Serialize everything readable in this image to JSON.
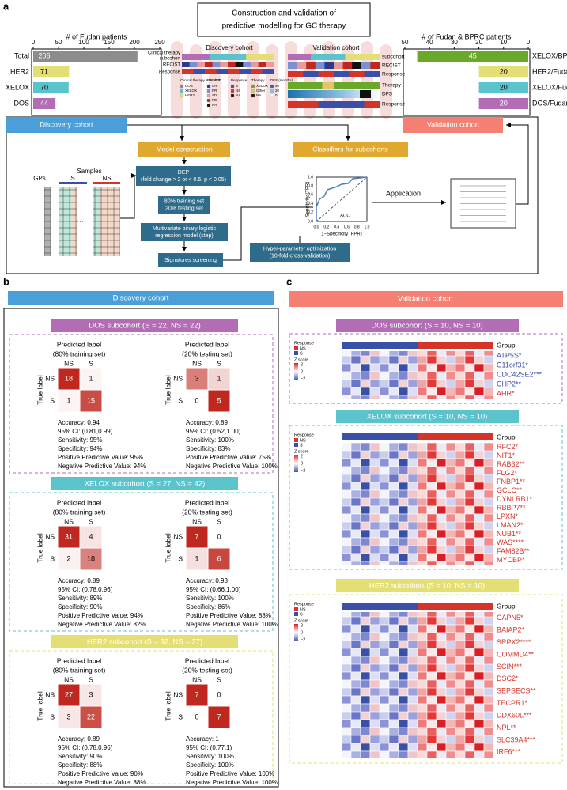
{
  "chart_data": [
    {
      "type": "bar",
      "orientation": "horizontal",
      "title": "# of Fudan patients",
      "categories": [
        "Total",
        "HER2",
        "XELOX",
        "DOS"
      ],
      "values": [
        206,
        71,
        70,
        44
      ],
      "colors": [
        "#8c8c8c",
        "#e4df74",
        "#5bc3cb",
        "#b26db5"
      ],
      "xlim": [
        0,
        250
      ],
      "xticks": [
        0,
        50,
        100,
        150,
        200,
        250
      ]
    },
    {
      "type": "bar",
      "orientation": "horizontal",
      "title": "# of Fudan & BPRC patients",
      "categories": [
        "XELOX/BPRC",
        "HER2/Fudan",
        "XELOX/Fudan",
        "DOS/Fudan"
      ],
      "values": [
        45,
        20,
        20,
        20
      ],
      "colors": [
        "#6aa82a",
        "#e4df74",
        "#5bc3cb",
        "#b26db5"
      ],
      "xlim": [
        50,
        0
      ],
      "xticks": [
        50,
        40,
        30,
        20,
        10,
        0
      ]
    }
  ],
  "panel_a": {
    "label": "a",
    "title": [
      "Construction and validation of",
      "predictive modelling for GC therapy"
    ],
    "discovery_column": "Discovery cohort",
    "validation_column": "Validation cohort",
    "discovery_rows": [
      "Clinical therapy",
      "subcohort",
      "RECIST",
      "Response"
    ],
    "validation_rows": [
      "subcohort",
      "RECIST",
      "Response",
      "Therapy",
      "DFS",
      "Response"
    ],
    "legend": [
      {
        "title": "Clinical therapy subcohort",
        "items": [
          {
            "label": "DOS",
            "color": "#b26db5"
          },
          {
            "label": "XELOX",
            "color": "#5bc3cb"
          },
          {
            "label": "HER2",
            "color": "#e4df74"
          }
        ]
      },
      {
        "title": "RECIST",
        "items": [
          {
            "label": "CR",
            "color": "#2b3a8c"
          },
          {
            "label": "PR",
            "color": "#7d8fd0"
          },
          {
            "label": "SD",
            "color": "#e99a9a"
          },
          {
            "label": "PD",
            "color": "#c0281f"
          },
          {
            "label": "NA",
            "color": "#111111"
          }
        ]
      },
      {
        "title": "Response",
        "items": [
          {
            "label": "S",
            "color": "#3a4fa8"
          },
          {
            "label": "NS",
            "color": "#d4342a"
          },
          {
            "label": "NA",
            "color": "#111111"
          }
        ]
      },
      {
        "title": "Therapy",
        "items": [
          {
            "label": "XELOX",
            "color": "#6aa82a"
          },
          {
            "label": "Other",
            "color": "#e6c46a"
          },
          {
            "label": "NA",
            "color": "#111111"
          }
        ]
      },
      {
        "title": "DFS (months)",
        "items": [
          {
            "label": "40",
            "color": "#1f6fb0"
          },
          {
            "label": "20",
            "color": "#8ec1e3"
          },
          {
            "label": "0",
            "color": "#ffffff"
          }
        ]
      }
    ],
    "discovery_box": "Discovery cohort",
    "validation_box": "Validation cohort",
    "model_construction": "Model construction",
    "classifiers": "Classifiers for subcohorts",
    "dep": [
      "DEP",
      "(fold change > 2 or < 0.5, p < 0.05)"
    ],
    "split": [
      "80% training set",
      "20% testing set"
    ],
    "regression": [
      "Multivariate binary logistic",
      "regression model (step)"
    ],
    "screening": "Signatures screening",
    "hyper": [
      "Hyper-parameter optimization",
      "(10-fold cross-validation)"
    ],
    "application": "Application",
    "samples": "Samples",
    "gps": "GPs",
    "s": "S",
    "ns": "NS",
    "roc": {
      "ylabel": "Sensitivity (TPR)",
      "xlabel": "1−Specificity (FPR)",
      "auc": "AUC",
      "ticks": [
        "0.0",
        "0.2",
        "0.4",
        "0.6",
        "0.8",
        "1.0"
      ]
    }
  },
  "panel_b": {
    "label": "b",
    "header": "Discovery cohort",
    "classes": [
      "NS",
      "S"
    ],
    "true_label": "True label",
    "subcohorts": [
      {
        "title": "DOS subcohort (S = 22, NS = 22)",
        "color": "#b26db5",
        "sets": [
          {
            "title": "Predicted label",
            "subtitle": "(80% training set)",
            "matrix": [
              [
                18,
                1
              ],
              [
                1,
                15
              ]
            ],
            "stats": [
              "Accuracy: 0.94",
              "95% CI: (0.81,0.99)",
              "Sensitivity: 95%",
              "Specificity: 94%",
              "Positive Predictive Value: 95%",
              "Negative Predictive Value: 94%"
            ]
          },
          {
            "title": "Predicted label",
            "subtitle": "(20% testing set)",
            "matrix": [
              [
                3,
                1
              ],
              [
                0,
                5
              ]
            ],
            "stats": [
              "Accuracy: 0.89",
              "95% CI: (0.52,1.00)",
              "Sensitivity: 100%",
              "Specificity: 83%",
              "Positive Predictive Value: 75%",
              "Negative Predictive Value: 100%"
            ]
          }
        ]
      },
      {
        "title": "XELOX subcohort (S = 27, NS = 42)",
        "color": "#5bc3cb",
        "sets": [
          {
            "title": "Predicted label",
            "subtitle": "(80% training set)",
            "matrix": [
              [
                31,
                4
              ],
              [
                2,
                18
              ]
            ],
            "stats": [
              "Accuracy: 0.89",
              "95% CI: (0.78,0.96)",
              "Sensitivity: 89%",
              "Specificity: 90%",
              "Positive Predictive Value: 94%",
              "Negative Predictive Value: 82%"
            ]
          },
          {
            "title": "Predicted label",
            "subtitle": "(20% testing set)",
            "matrix": [
              [
                7,
                0
              ],
              [
                1,
                6
              ]
            ],
            "stats": [
              "Accuracy: 0.93",
              "95% CI: (0.66,1.00)",
              "Sensitivity: 100%",
              "Specificity: 86%",
              "Positive Predictive Value: 88%",
              "Negative Predictive Value: 100%"
            ]
          }
        ]
      },
      {
        "title": "HER2 subcohort (S = 32, NS = 37)",
        "color": "#e4df74",
        "sets": [
          {
            "title": "Predicted label",
            "subtitle": "(80% training set)",
            "matrix": [
              [
                27,
                3
              ],
              [
                3,
                22
              ]
            ],
            "stats": [
              "Accuracy: 0.89",
              "95% CI: (0.78,0.96)",
              "Sensitivity: 90%",
              "Specificity: 88%",
              "Positive Predictive Value: 90%",
              "Negative Predictive Value: 88%"
            ]
          },
          {
            "title": "Predicted label",
            "subtitle": "(20% testing set)",
            "matrix": [
              [
                7,
                0
              ],
              [
                0,
                7
              ]
            ],
            "stats": [
              "Accuracy: 1",
              "95% CI: (0.77,1)",
              "Sensitivity: 100%",
              "Specificity: 100%",
              "Positive Predictive Value: 100%",
              "Negative Predictive Value: 100%"
            ]
          }
        ]
      }
    ]
  },
  "panel_c": {
    "label": "c",
    "header": "Validation cohort",
    "legend": {
      "response": "Response",
      "ns": "NS",
      "s": "S",
      "zscore": "Z score",
      "zticks": [
        "2",
        "0",
        "−2"
      ]
    },
    "group": "Group",
    "subcohorts": [
      {
        "title": "DOS subcohort (S = 10, NS = 10)",
        "color": "#b26db5",
        "genes": [
          {
            "name": "ATP5S*",
            "color": "#3a4fa8"
          },
          {
            "name": "C11orf31*",
            "color": "#3a4fa8"
          },
          {
            "name": "CDC42SE2***",
            "color": "#3a4fa8"
          },
          {
            "name": "CHP2**",
            "color": "#3a4fa8"
          },
          {
            "name": "AHR*",
            "color": "#d4342a"
          }
        ]
      },
      {
        "title": "XELOX subcohort (S = 10, NS = 10)",
        "color": "#5bc3cb",
        "genes": [
          {
            "name": "RFC2*",
            "color": "#d4342a"
          },
          {
            "name": "NIT1*",
            "color": "#d4342a"
          },
          {
            "name": "RAB32**",
            "color": "#d4342a"
          },
          {
            "name": "FLG2*",
            "color": "#d4342a"
          },
          {
            "name": "FNBP1**",
            "color": "#d4342a"
          },
          {
            "name": "GCLC**",
            "color": "#d4342a"
          },
          {
            "name": "DYNLRB1*",
            "color": "#d4342a"
          },
          {
            "name": "RBBP7**",
            "color": "#d4342a"
          },
          {
            "name": "LPXN*",
            "color": "#d4342a"
          },
          {
            "name": "LMAN2*",
            "color": "#d4342a"
          },
          {
            "name": "NUB1**",
            "color": "#d4342a"
          },
          {
            "name": "WAS****",
            "color": "#d4342a"
          },
          {
            "name": "FAM82B**",
            "color": "#d4342a"
          },
          {
            "name": "MYCBP*",
            "color": "#d4342a"
          }
        ]
      },
      {
        "title": "HER2 subcohort (S = 10, NS = 10)",
        "color": "#e4df74",
        "genes": [
          {
            "name": "CAPN5*",
            "color": "#d4342a"
          },
          {
            "name": "BAIAP2*",
            "color": "#d4342a"
          },
          {
            "name": "SRPX2****",
            "color": "#d4342a"
          },
          {
            "name": "COMMD4**",
            "color": "#d4342a"
          },
          {
            "name": "SCIN***",
            "color": "#d4342a"
          },
          {
            "name": "DSC2*",
            "color": "#d4342a"
          },
          {
            "name": "SEPSECS**",
            "color": "#d4342a"
          },
          {
            "name": "TECPR1*",
            "color": "#d4342a"
          },
          {
            "name": "DDX60L***",
            "color": "#d4342a"
          },
          {
            "name": "NPL**",
            "color": "#d4342a"
          },
          {
            "name": "SLC39A4***",
            "color": "#d4342a"
          },
          {
            "name": "IRF6***",
            "color": "#d4342a"
          }
        ]
      }
    ]
  }
}
